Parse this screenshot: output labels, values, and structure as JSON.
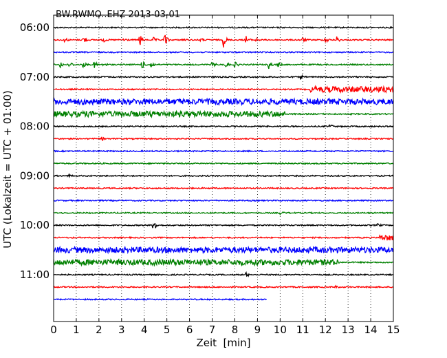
{
  "chart_data": {
    "type": "line",
    "chart_kind": "seismogram dayplot (helicorder)",
    "title": "BW.RWMO..EHZ 2013-03-01",
    "xlabel": "Zeit  [min]",
    "ylabel": "UTC (Lokalzeit = UTC + 01:00)",
    "xlim": [
      0,
      15
    ],
    "x_ticks": [
      "0",
      "1",
      "2",
      "3",
      "4",
      "5",
      "6",
      "7",
      "8",
      "9",
      "10",
      "11",
      "12",
      "13",
      "14",
      "15"
    ],
    "y_tick_labels": [
      "06:00",
      "07:00",
      "08:00",
      "09:00",
      "10:00",
      "11:00"
    ],
    "y_tick_rows": [
      0,
      4,
      8,
      12,
      16,
      20
    ],
    "vertical_grid": "dotted",
    "row_interval_min": 15,
    "colors": [
      "#000000",
      "#ff0000",
      "#0000ff",
      "#008000"
    ],
    "traces": [
      {
        "start": "06:00",
        "amplitude": "low",
        "events": []
      },
      {
        "start": "06:15",
        "amplitude": "low",
        "events": [
          {
            "t": 0.5,
            "amp": 0.35
          },
          {
            "t": 1.3,
            "amp": 0.7
          },
          {
            "t": 2.2,
            "amp": 0.3
          },
          {
            "t": 3.1,
            "amp": 0.35
          },
          {
            "t": 3.8,
            "amp": 1.0
          },
          {
            "t": 4.4,
            "amp": 0.35
          },
          {
            "t": 4.9,
            "amp": 1.0
          },
          {
            "t": 5.7,
            "amp": 0.2
          },
          {
            "t": 6.5,
            "amp": 0.2
          },
          {
            "t": 7.5,
            "amp": 1.0
          },
          {
            "t": 8.5,
            "amp": 0.55
          },
          {
            "t": 8.9,
            "amp": 0.35
          },
          {
            "t": 11.0,
            "amp": 0.3
          },
          {
            "t": 12.0,
            "amp": 0.55
          },
          {
            "t": 12.5,
            "amp": 0.45
          }
        ]
      },
      {
        "start": "06:30",
        "amplitude": "low",
        "events": []
      },
      {
        "start": "06:45",
        "amplitude": "low",
        "events": [
          {
            "t": 0.3,
            "amp": 0.5
          },
          {
            "t": 0.7,
            "amp": 0.5
          },
          {
            "t": 1.3,
            "amp": 0.4
          },
          {
            "t": 1.8,
            "amp": 0.5
          },
          {
            "t": 2.2,
            "amp": 0.35
          },
          {
            "t": 3.9,
            "amp": 0.6
          },
          {
            "t": 4.3,
            "amp": 0.5
          },
          {
            "t": 7.0,
            "amp": 0.4
          },
          {
            "t": 7.6,
            "amp": 0.45
          },
          {
            "t": 8.0,
            "amp": 0.4
          },
          {
            "t": 9.5,
            "amp": 0.55
          },
          {
            "t": 9.9,
            "amp": 0.4
          }
        ]
      },
      {
        "start": "07:00",
        "amplitude": "low",
        "events": [
          {
            "t": 10.9,
            "amp": 0.3
          }
        ]
      },
      {
        "start": "07:15",
        "amplitude": "low",
        "high_from": 11.3,
        "events": []
      },
      {
        "start": "07:30",
        "amplitude": "high",
        "events": []
      },
      {
        "start": "07:45",
        "amplitude": "high",
        "high_until": 10.2,
        "events": []
      },
      {
        "start": "08:00",
        "amplitude": "low",
        "events": [
          {
            "t": 12.2,
            "amp": 0.3
          }
        ]
      },
      {
        "start": "08:15",
        "amplitude": "low",
        "events": [
          {
            "t": 2.1,
            "amp": 0.25
          }
        ]
      },
      {
        "start": "08:30",
        "amplitude": "low",
        "events": []
      },
      {
        "start": "08:45",
        "amplitude": "low",
        "events": []
      },
      {
        "start": "09:00",
        "amplitude": "low",
        "events": [
          {
            "t": 0.6,
            "amp": 0.3
          }
        ]
      },
      {
        "start": "09:15",
        "amplitude": "low",
        "events": []
      },
      {
        "start": "09:30",
        "amplitude": "low",
        "events": []
      },
      {
        "start": "09:45",
        "amplitude": "low",
        "events": [
          {
            "t": 10.0,
            "amp": 0.25
          }
        ]
      },
      {
        "start": "10:00",
        "amplitude": "low",
        "events": [
          {
            "t": 4.4,
            "amp": 1.4
          },
          {
            "t": 14.3,
            "amp": 0.25
          }
        ]
      },
      {
        "start": "10:15",
        "amplitude": "low",
        "high_from": 14.4,
        "events": []
      },
      {
        "start": "10:30",
        "amplitude": "high",
        "events": []
      },
      {
        "start": "10:45",
        "amplitude": "high",
        "high_until": 12.6,
        "events": []
      },
      {
        "start": "11:00",
        "amplitude": "low",
        "events": [
          {
            "t": 8.5,
            "amp": 0.3
          }
        ]
      },
      {
        "start": "11:15",
        "amplitude": "low",
        "events": [
          {
            "t": 12.4,
            "amp": 0.25
          }
        ]
      },
      {
        "start": "11:30",
        "amplitude": "low",
        "end": 9.4,
        "events": []
      }
    ]
  }
}
